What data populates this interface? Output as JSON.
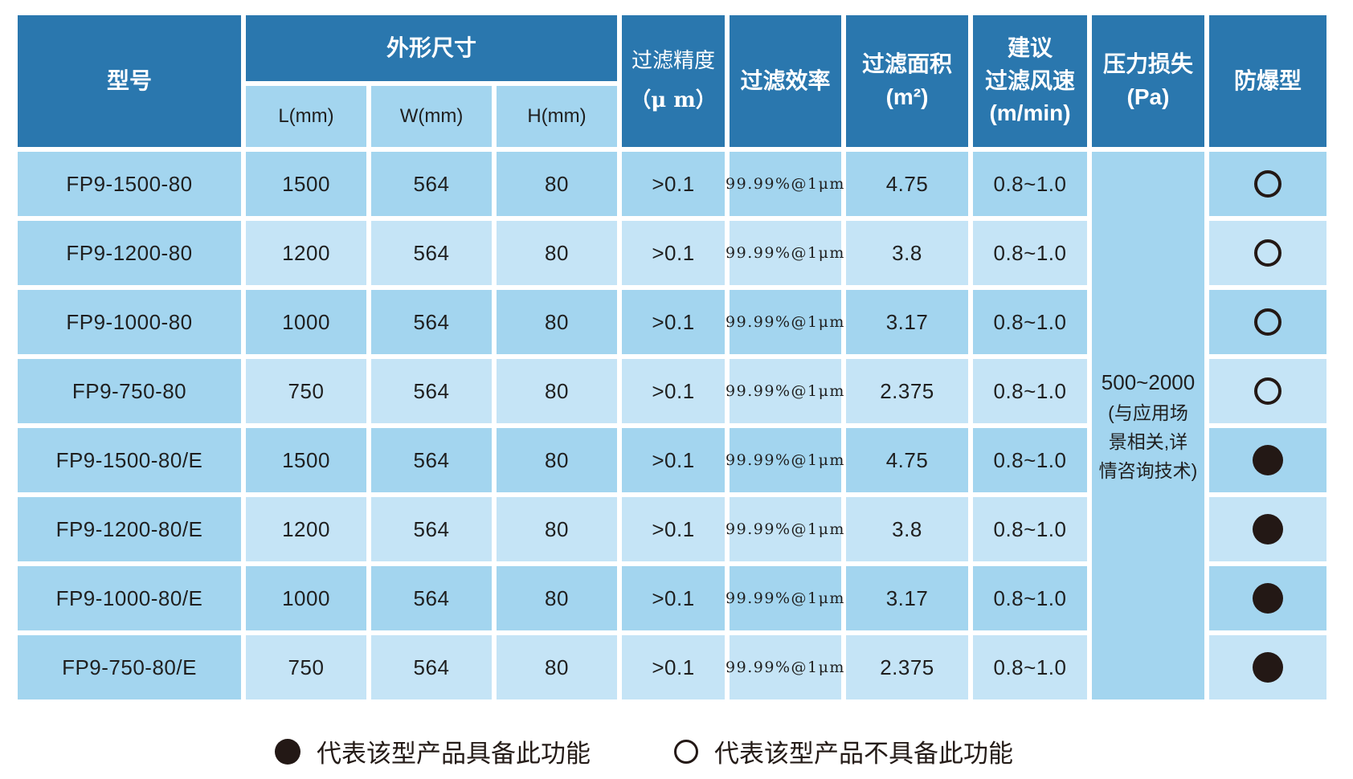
{
  "table": {
    "headers": {
      "model": "型号",
      "dimensions_group": "外形尺寸",
      "dim_l": "L(mm)",
      "dim_w": "W(mm)",
      "dim_h": "H(mm)",
      "precision_name": "过滤精度",
      "precision_unit": "（μ m）",
      "efficiency": "过滤效率",
      "area_name": "过滤面积",
      "area_unit": "(m²)",
      "airspeed_line1": "建议",
      "airspeed_line2": "过滤风速",
      "airspeed_unit": "(m/min)",
      "pressure_name": "压力损失",
      "pressure_unit": "(Pa)",
      "explosion": "防爆型"
    },
    "pressure_loss": {
      "value": "500~2000",
      "note": "(与应用场\n景相关,详\n情咨询技术)"
    },
    "rows": [
      {
        "model": "FP9-1500-80",
        "l": "1500",
        "w": "564",
        "h": "80",
        "precision": ">0.1",
        "efficiency": "99.99%@1μm",
        "area": "4.75",
        "airspeed": "0.8~1.0",
        "explosion_proof": false
      },
      {
        "model": "FP9-1200-80",
        "l": "1200",
        "w": "564",
        "h": "80",
        "precision": ">0.1",
        "efficiency": "99.99%@1μm",
        "area": "3.8",
        "airspeed": "0.8~1.0",
        "explosion_proof": false
      },
      {
        "model": "FP9-1000-80",
        "l": "1000",
        "w": "564",
        "h": "80",
        "precision": ">0.1",
        "efficiency": "99.99%@1μm",
        "area": "3.17",
        "airspeed": "0.8~1.0",
        "explosion_proof": false
      },
      {
        "model": "FP9-750-80",
        "l": "750",
        "w": "564",
        "h": "80",
        "precision": ">0.1",
        "efficiency": "99.99%@1μm",
        "area": "2.375",
        "airspeed": "0.8~1.0",
        "explosion_proof": false
      },
      {
        "model": "FP9-1500-80/E",
        "l": "1500",
        "w": "564",
        "h": "80",
        "precision": ">0.1",
        "efficiency": "99.99%@1μm",
        "area": "4.75",
        "airspeed": "0.8~1.0",
        "explosion_proof": true
      },
      {
        "model": "FP9-1200-80/E",
        "l": "1200",
        "w": "564",
        "h": "80",
        "precision": ">0.1",
        "efficiency": "99.99%@1μm",
        "area": "3.8",
        "airspeed": "0.8~1.0",
        "explosion_proof": true
      },
      {
        "model": "FP9-1000-80/E",
        "l": "1000",
        "w": "564",
        "h": "80",
        "precision": ">0.1",
        "efficiency": "99.99%@1μm",
        "area": "3.17",
        "airspeed": "0.8~1.0",
        "explosion_proof": true
      },
      {
        "model": "FP9-750-80/E",
        "l": "750",
        "w": "564",
        "h": "80",
        "precision": ">0.1",
        "efficiency": "99.99%@1μm",
        "area": "2.375",
        "airspeed": "0.8~1.0",
        "explosion_proof": true
      }
    ]
  },
  "legend": {
    "filled_label": "代表该型产品具备此功能",
    "hollow_label": "代表该型产品不具备此功能"
  },
  "colors": {
    "header_blue": "#2a77ae",
    "row_dark": "#a3d5ef",
    "row_light": "#c5e4f6",
    "circle_black": "#231815",
    "gap_white": "#ffffff",
    "text_dark": "#1f1f1f"
  }
}
